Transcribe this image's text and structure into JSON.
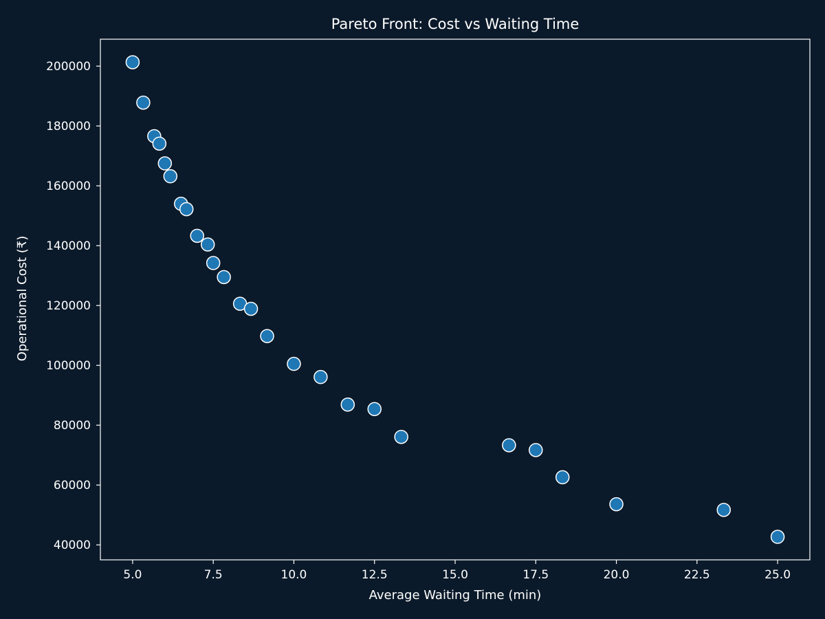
{
  "colors": {
    "background": "#0b1a2a",
    "axes": "#ffffff",
    "marker_fill": "#1f77b4",
    "marker_edge": "#ffffff",
    "text": "#ffffff"
  },
  "chart_data": {
    "type": "scatter",
    "title": "Pareto Front: Cost vs Waiting Time",
    "xlabel": "Average Waiting Time (min)",
    "ylabel": "Operational Cost (₹)",
    "xlim": [
      4.0,
      26.0
    ],
    "ylim": [
      35000,
      209000
    ],
    "grid": false,
    "legend": "none",
    "xticks": [
      5.0,
      7.5,
      10.0,
      12.5,
      15.0,
      17.5,
      20.0,
      22.5,
      25.0
    ],
    "xtick_labels": [
      "5.0",
      "7.5",
      "10.0",
      "12.5",
      "15.0",
      "17.5",
      "20.0",
      "22.5",
      "25.0"
    ],
    "yticks": [
      40000,
      60000,
      80000,
      100000,
      120000,
      140000,
      160000,
      180000,
      200000
    ],
    "ytick_labels": [
      "40000",
      "60000",
      "80000",
      "100000",
      "120000",
      "140000",
      "160000",
      "180000",
      "200000"
    ],
    "points": [
      {
        "x": 5.0,
        "y": 201300
      },
      {
        "x": 5.33,
        "y": 187800
      },
      {
        "x": 5.67,
        "y": 176600
      },
      {
        "x": 5.83,
        "y": 174100
      },
      {
        "x": 6.0,
        "y": 167500
      },
      {
        "x": 6.17,
        "y": 163200
      },
      {
        "x": 6.5,
        "y": 154000
      },
      {
        "x": 6.67,
        "y": 152200
      },
      {
        "x": 7.0,
        "y": 143300
      },
      {
        "x": 7.33,
        "y": 140400
      },
      {
        "x": 7.5,
        "y": 134200
      },
      {
        "x": 7.83,
        "y": 129500
      },
      {
        "x": 8.33,
        "y": 120600
      },
      {
        "x": 8.67,
        "y": 118900
      },
      {
        "x": 9.17,
        "y": 109800
      },
      {
        "x": 10.0,
        "y": 100500
      },
      {
        "x": 10.83,
        "y": 96100
      },
      {
        "x": 11.67,
        "y": 86900
      },
      {
        "x": 12.5,
        "y": 85400
      },
      {
        "x": 13.33,
        "y": 76100
      },
      {
        "x": 16.67,
        "y": 73300
      },
      {
        "x": 17.5,
        "y": 71700
      },
      {
        "x": 18.33,
        "y": 62600
      },
      {
        "x": 20.0,
        "y": 53600
      },
      {
        "x": 23.33,
        "y": 51700
      },
      {
        "x": 25.0,
        "y": 42700
      }
    ]
  }
}
